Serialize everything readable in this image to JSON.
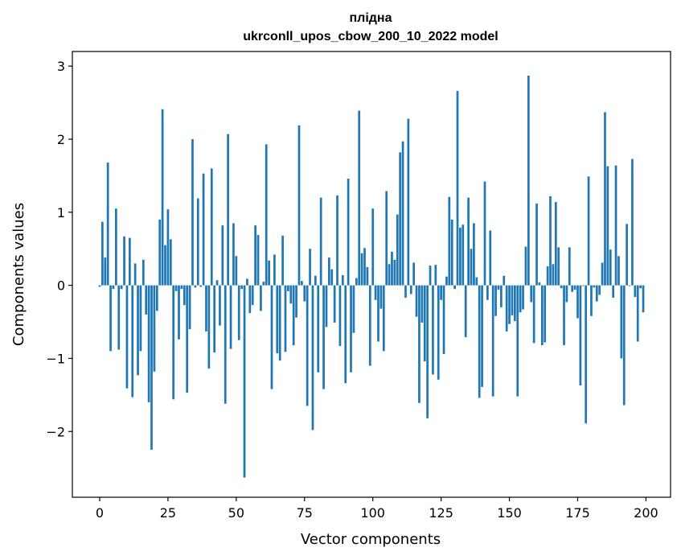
{
  "chart_data": {
    "type": "bar",
    "title": "плідна",
    "subtitle": "ukrconll_upos_cbow_200_10_2022 model",
    "xlabel": "Vector components",
    "ylabel": "Components values",
    "xlim": [
      -10,
      209
    ],
    "ylim": [
      -2.9,
      3.2
    ],
    "xticks": [
      0,
      25,
      50,
      75,
      100,
      125,
      150,
      175,
      200
    ],
    "xtick_labels": [
      "0",
      "25",
      "50",
      "75",
      "100",
      "125",
      "150",
      "175",
      "200"
    ],
    "yticks": [
      -2,
      -1,
      0,
      1,
      2,
      3
    ],
    "ytick_labels": [
      "−2",
      "−1",
      "0",
      "1",
      "2",
      "3"
    ],
    "grid": false,
    "bar_color": "#1f77b4",
    "x": [
      0,
      1,
      2,
      3,
      4,
      5,
      6,
      7,
      8,
      9,
      10,
      11,
      12,
      13,
      14,
      15,
      16,
      17,
      18,
      19,
      20,
      21,
      22,
      23,
      24,
      25,
      26,
      27,
      28,
      29,
      30,
      31,
      32,
      33,
      34,
      35,
      36,
      37,
      38,
      39,
      40,
      41,
      42,
      43,
      44,
      45,
      46,
      47,
      48,
      49,
      50,
      51,
      52,
      53,
      54,
      55,
      56,
      57,
      58,
      59,
      60,
      61,
      62,
      63,
      64,
      65,
      66,
      67,
      68,
      69,
      70,
      71,
      72,
      73,
      74,
      75,
      76,
      77,
      78,
      79,
      80,
      81,
      82,
      83,
      84,
      85,
      86,
      87,
      88,
      89,
      90,
      91,
      92,
      93,
      94,
      95,
      96,
      97,
      98,
      99,
      100,
      101,
      102,
      103,
      104,
      105,
      106,
      107,
      108,
      109,
      110,
      111,
      112,
      113,
      114,
      115,
      116,
      117,
      118,
      119,
      120,
      121,
      122,
      123,
      124,
      125,
      126,
      127,
      128,
      129,
      130,
      131,
      132,
      133,
      134,
      135,
      136,
      137,
      138,
      139,
      140,
      141,
      142,
      143,
      144,
      145,
      146,
      147,
      148,
      149,
      150,
      151,
      152,
      153,
      154,
      155,
      156,
      157,
      158,
      159,
      160,
      161,
      162,
      163,
      164,
      165,
      166,
      167,
      168,
      169,
      170,
      171,
      172,
      173,
      174,
      175,
      176,
      177,
      178,
      179,
      180,
      181,
      182,
      183,
      184,
      185,
      186,
      187,
      188,
      189,
      190,
      191,
      192,
      193,
      194,
      195,
      196,
      197,
      198,
      199
    ],
    "values": [
      -0.02,
      0.87,
      0.38,
      1.68,
      -0.9,
      -0.05,
      1.05,
      -0.88,
      -0.05,
      0.67,
      -1.41,
      0.65,
      -1.53,
      0.3,
      -1.23,
      -0.9,
      0.35,
      -0.4,
      -1.6,
      -2.25,
      -1.18,
      -0.35,
      0.9,
      2.41,
      0.55,
      1.04,
      0.63,
      -1.56,
      -0.08,
      -0.74,
      -0.05,
      -0.27,
      -1.47,
      -0.6,
      2.0,
      -0.03,
      1.19,
      -0.02,
      1.53,
      -0.63,
      -1.14,
      1.6,
      -0.92,
      0.07,
      -0.55,
      0.82,
      -1.62,
      2.07,
      -0.87,
      0.85,
      0.4,
      -0.75,
      -0.05,
      -2.63,
      0.09,
      -0.38,
      -0.27,
      0.82,
      0.69,
      -0.35,
      0.05,
      1.93,
      0.34,
      -1.42,
      0.42,
      -0.93,
      -1.03,
      0.68,
      -0.91,
      -0.08,
      -0.25,
      -0.82,
      -0.44,
      2.19,
      0.06,
      -0.22,
      -1.65,
      0.5,
      -1.98,
      0.13,
      -1.19,
      1.2,
      -1.42,
      -0.57,
      0.38,
      0.22,
      -0.51,
      1.23,
      -0.83,
      0.14,
      -1.34,
      1.46,
      -1.19,
      -0.65,
      0.1,
      2.39,
      0.44,
      0.51,
      0.25,
      -1.1,
      1.05,
      -0.2,
      -0.77,
      -0.32,
      -0.9,
      1.29,
      0.29,
      0.46,
      0.35,
      0.97,
      1.82,
      1.97,
      -0.17,
      2.28,
      -0.12,
      0.31,
      -0.43,
      -1.61,
      -0.51,
      -1.04,
      -1.82,
      0.27,
      -1.22,
      0.28,
      -1.29,
      -0.2,
      -0.94,
      0.12,
      1.21,
      0.9,
      -0.05,
      2.66,
      0.79,
      0.83,
      -0.71,
      1.2,
      0.5,
      0.85,
      0.11,
      -1.54,
      -1.39,
      1.42,
      -0.2,
      0.75,
      -1.52,
      -0.42,
      -0.06,
      -0.3,
      0.13,
      -0.63,
      -0.53,
      -0.41,
      -0.49,
      -1.52,
      -0.37,
      -0.33,
      0.53,
      2.87,
      -0.23,
      -0.79,
      1.12,
      0.04,
      -0.82,
      -0.78,
      0.26,
      1.22,
      0.29,
      1.14,
      0.52,
      -0.04,
      -0.82,
      -0.23,
      0.52,
      -0.09,
      -0.06,
      -0.45,
      -1.37,
      -0.01,
      -1.89,
      1.49,
      -0.42,
      -0.03,
      -0.22,
      -0.13,
      0.31,
      2.37,
      1.63,
      0.49,
      -0.17,
      1.64,
      0.4,
      -1.0,
      -1.64,
      0.84,
      -0.01,
      1.73,
      -0.16,
      -0.77,
      -0.04,
      -0.37
    ]
  }
}
